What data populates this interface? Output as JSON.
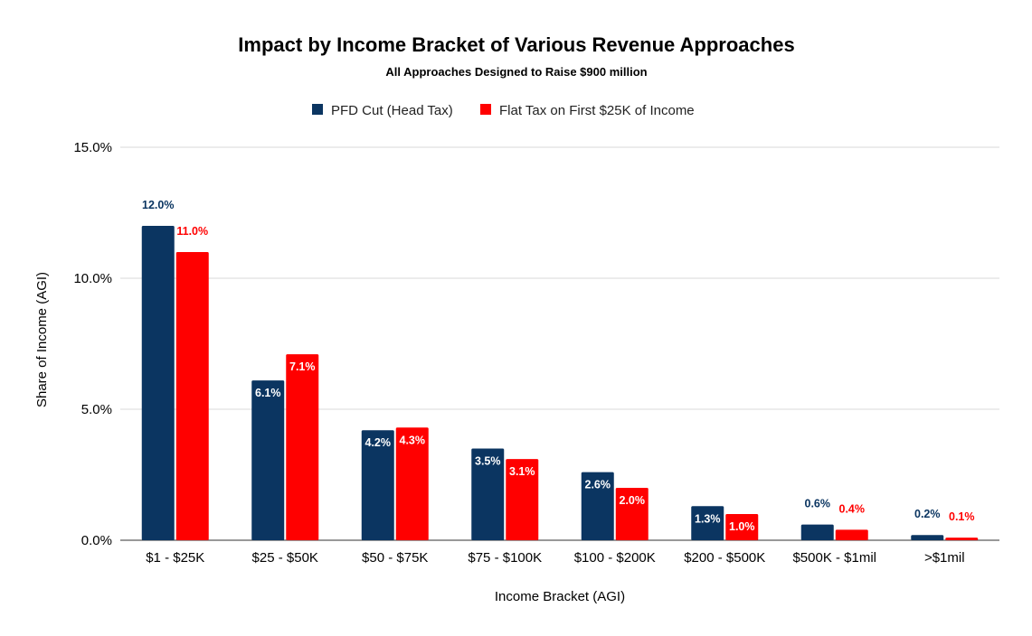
{
  "chart_data": {
    "type": "bar",
    "title": "Impact by Income Bracket of Various Revenue Approaches",
    "subtitle": "All Approaches Designed to Raise $900 million",
    "xlabel": "Income Bracket (AGI)",
    "ylabel": "Share of Income (AGI)",
    "ylim": [
      0,
      15
    ],
    "yticks": [
      "0.0%",
      "5.0%",
      "10.0%",
      "15.0%"
    ],
    "ytick_values": [
      0,
      5,
      10,
      15
    ],
    "grid": true,
    "legend_position": "top-center",
    "categories": [
      "$1 - $25K",
      "$25 - $50K",
      "$50 - $75K",
      "$75 - $100K",
      "$100 - $200K",
      "$200 - $500K",
      "$500K - $1mil",
      ">$1mil"
    ],
    "series": [
      {
        "name": "PFD Cut (Head Tax)",
        "color": "#0b3561",
        "values": [
          12.0,
          6.1,
          4.2,
          3.5,
          2.6,
          1.3,
          0.6,
          0.2
        ],
        "labels": [
          "12.0%",
          "6.1%",
          "4.2%",
          "3.5%",
          "2.6%",
          "1.3%",
          "0.6%",
          "0.2%"
        ]
      },
      {
        "name": "Flat Tax on First $25K of Income",
        "color": "#ff0000",
        "values": [
          11.0,
          7.1,
          4.3,
          3.1,
          2.0,
          1.0,
          0.4,
          0.1
        ],
        "labels": [
          "11.0%",
          "7.1%",
          "4.3%",
          "3.1%",
          "2.0%",
          "1.0%",
          "0.4%",
          "0.1%"
        ]
      }
    ]
  }
}
